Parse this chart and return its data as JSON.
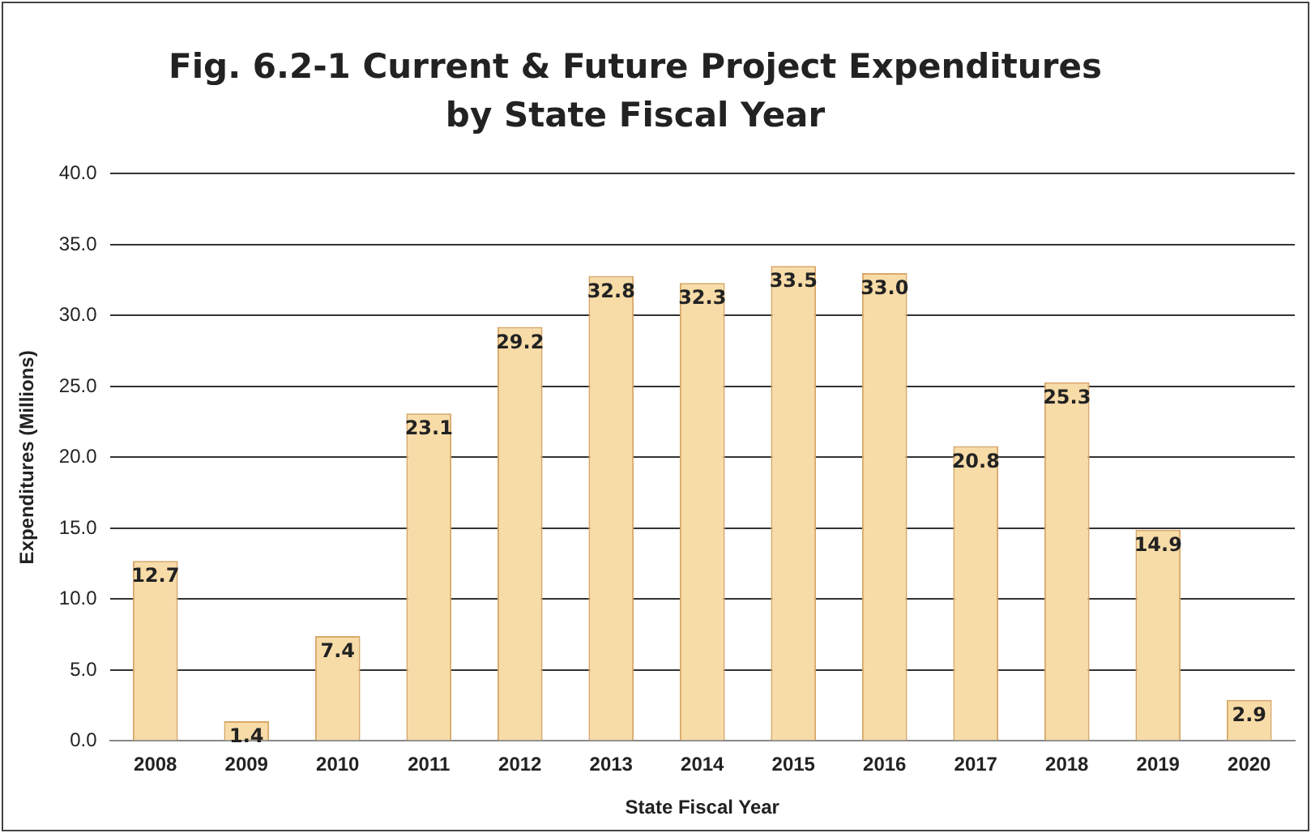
{
  "chart_data": {
    "type": "bar",
    "title": "Fig. 6.2-1 Current & Future Project Expenditures by State Fiscal Year",
    "xlabel": "State Fiscal Year",
    "ylabel": "Expenditures (Millions)",
    "categories": [
      "2008",
      "2009",
      "2010",
      "2011",
      "2012",
      "2013",
      "2014",
      "2015",
      "2016",
      "2017",
      "2018",
      "2019",
      "2020"
    ],
    "values": [
      12.7,
      1.4,
      7.4,
      23.1,
      29.2,
      32.8,
      32.3,
      33.5,
      33.0,
      20.8,
      25.3,
      14.9,
      2.9
    ],
    "value_labels": [
      "12.7",
      "1.4",
      "7.4",
      "23.1",
      "29.2",
      "32.8",
      "32.3",
      "33.5",
      "33.0",
      "20.8",
      "25.3",
      "14.9",
      "2.9"
    ],
    "color": "#f7dca8",
    "ylim": [
      0,
      40
    ],
    "yticks": [
      {
        "value": 0,
        "label": "0.0"
      },
      {
        "value": 5,
        "label": "5.0"
      },
      {
        "value": 10,
        "label": "10.0"
      },
      {
        "value": 15,
        "label": "15.0"
      },
      {
        "value": 20,
        "label": "20.0"
      },
      {
        "value": 25,
        "label": "25.0"
      },
      {
        "value": 30,
        "label": "30.0"
      },
      {
        "value": 35,
        "label": "35.0"
      },
      {
        "value": 40,
        "label": "40.0"
      }
    ],
    "grid": "y",
    "legend": false
  }
}
